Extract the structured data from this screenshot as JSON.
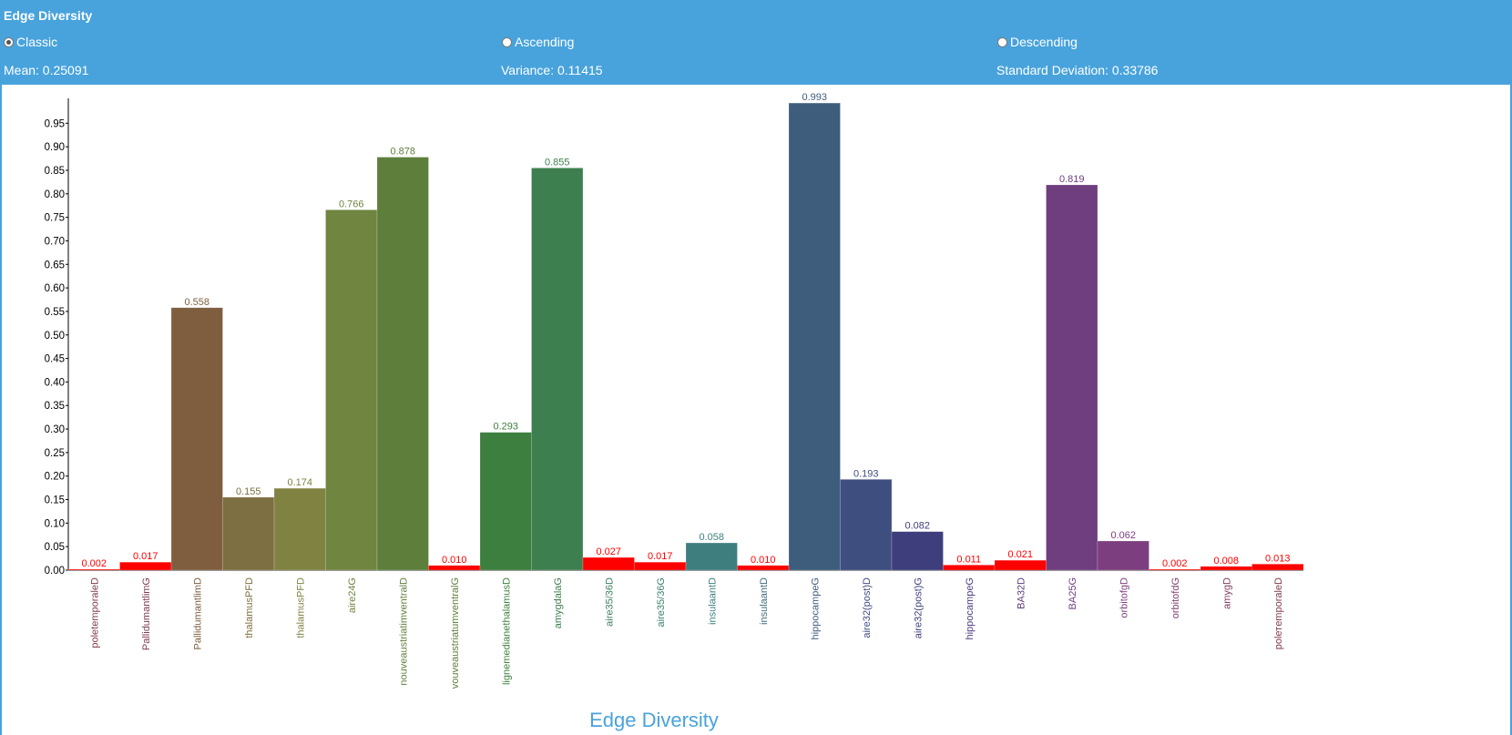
{
  "header": {
    "title": "Edge Diversity",
    "options": [
      {
        "label": "Classic",
        "checked": true
      },
      {
        "label": "Ascending",
        "checked": false
      },
      {
        "label": "Descending",
        "checked": false
      }
    ],
    "stats": {
      "mean": "Mean: 0.25091",
      "variance": "Variance: 0.11415",
      "std": "Standard Deviation: 0.33786"
    }
  },
  "chart_data": {
    "type": "bar",
    "title": "Edge Diversity",
    "xlabel": "",
    "ylabel": "",
    "ylim": [
      0,
      1
    ],
    "y_ticks": [
      "0.00",
      "0.05",
      "0.10",
      "0.15",
      "0.20",
      "0.25",
      "0.30",
      "0.35",
      "0.40",
      "0.45",
      "0.50",
      "0.55",
      "0.60",
      "0.65",
      "0.70",
      "0.75",
      "0.80",
      "0.85",
      "0.90",
      "0.95"
    ],
    "categories": [
      "poletemporaleD",
      "PallidumantlimG",
      "PallidumantlimD",
      "thalamusPFD",
      "thalamusPFD",
      "aire24G",
      "nouveaustriatimventralD",
      "vouveaustriatumventralG",
      "lignemedianethalamusD",
      "amygdalaG",
      "aire35/36D",
      "aire35/36G",
      "insulaantD",
      "insulaantD",
      "hippocampeG",
      "aire32(post)D",
      "aire32(post)G",
      "hippocampeG",
      "BA32D",
      "BA25G",
      "orbitofgD",
      "orbitofdG",
      "amygD",
      "polетemporaleD"
    ],
    "values": [
      0.002,
      0.017,
      0.558,
      0.155,
      0.174,
      0.766,
      0.878,
      0.01,
      0.293,
      0.855,
      0.027,
      0.017,
      0.058,
      0.01,
      0.993,
      0.193,
      0.082,
      0.011,
      0.021,
      0.819,
      0.062,
      0.002,
      0.008,
      0.013
    ],
    "value_labels": [
      "0.002",
      "0.017",
      "0.558",
      "0.155",
      "0.174",
      "0.766",
      "0.878",
      "0.010",
      "0.293",
      "0.855",
      "0.027",
      "0.017",
      "0.058",
      "0.010",
      "0.993",
      "0.193",
      "0.082",
      "0.011",
      "0.021",
      "0.819",
      "0.062",
      "0.002",
      "0.008",
      "0.013"
    ],
    "bar_colors": [
      "#ff0000",
      "#ff0000",
      "#7f5e40",
      "#7d6f41",
      "#7f8241",
      "#6f8540",
      "#5e7f3c",
      "#ff0000",
      "#3d7f3e",
      "#3e7f4f",
      "#ff0000",
      "#ff0000",
      "#3e7e7f",
      "#ff0000",
      "#3e5d7d",
      "#3e4e7f",
      "#3f3e7d",
      "#ff0000",
      "#ff0000",
      "#6f3e7f",
      "#7d3e7f",
      "#ff0000",
      "#ff0000",
      "#ff0000"
    ],
    "label_colors": [
      "#7d3b46",
      "#7d3b52",
      "#7f5e40",
      "#7d6f41",
      "#7f8241",
      "#6f8540",
      "#5e7f3c",
      "#5e7f3c",
      "#3d7f3e",
      "#3e7f4f",
      "#3e7f5e",
      "#3e7f6e",
      "#3e7e7f",
      "#3e6e7f",
      "#3e5d7d",
      "#3e4e7f",
      "#3f3e7d",
      "#4f3e7f",
      "#5e3e7f",
      "#6f3e7f",
      "#7d3e7f",
      "#7f3e6e",
      "#7f3e5e",
      "#7f3b4a"
    ],
    "value_label_red_color": "#ff0000",
    "grid": false,
    "legend": "none"
  }
}
